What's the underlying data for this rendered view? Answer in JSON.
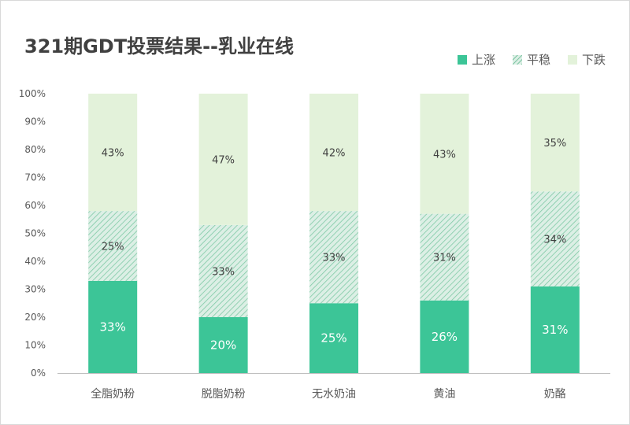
{
  "title": "321期GDT投票结果--乳业在线",
  "colors": {
    "up": "#3cc597",
    "flat_bg": "#dcefe5",
    "flat_line": "#7fc9a5",
    "down": "#e3f2da",
    "axis": "#bfbfbf",
    "tick_text": "#595959"
  },
  "legend": [
    {
      "label": "上涨",
      "key": "up"
    },
    {
      "label": "平稳",
      "key": "flat"
    },
    {
      "label": "下跌",
      "key": "down"
    }
  ],
  "chart_data": {
    "type": "bar",
    "stacked": true,
    "title": "321期GDT投票结果--乳业在线",
    "categories": [
      "全脂奶粉",
      "脱脂奶粉",
      "无水奶油",
      "黄油",
      "奶酪"
    ],
    "series": [
      {
        "name": "上涨",
        "values": [
          33,
          20,
          25,
          26,
          31
        ],
        "labels": [
          "33%",
          "20%",
          "25%",
          "26%",
          "31%"
        ]
      },
      {
        "name": "平稳",
        "values": [
          25,
          33,
          33,
          31,
          34
        ],
        "labels": [
          "25%",
          "33%",
          "33%",
          "31%",
          "34%"
        ]
      },
      {
        "name": "下跌",
        "values": [
          43,
          47,
          42,
          43,
          35
        ],
        "labels": [
          "43%",
          "47%",
          "42%",
          "43%",
          "35%"
        ]
      }
    ],
    "ylim": [
      0,
      100
    ],
    "yticks": [
      "0%",
      "10%",
      "20%",
      "30%",
      "40%",
      "50%",
      "60%",
      "70%",
      "80%",
      "90%",
      "100%"
    ],
    "legend_position": "top-right",
    "grid": false
  }
}
